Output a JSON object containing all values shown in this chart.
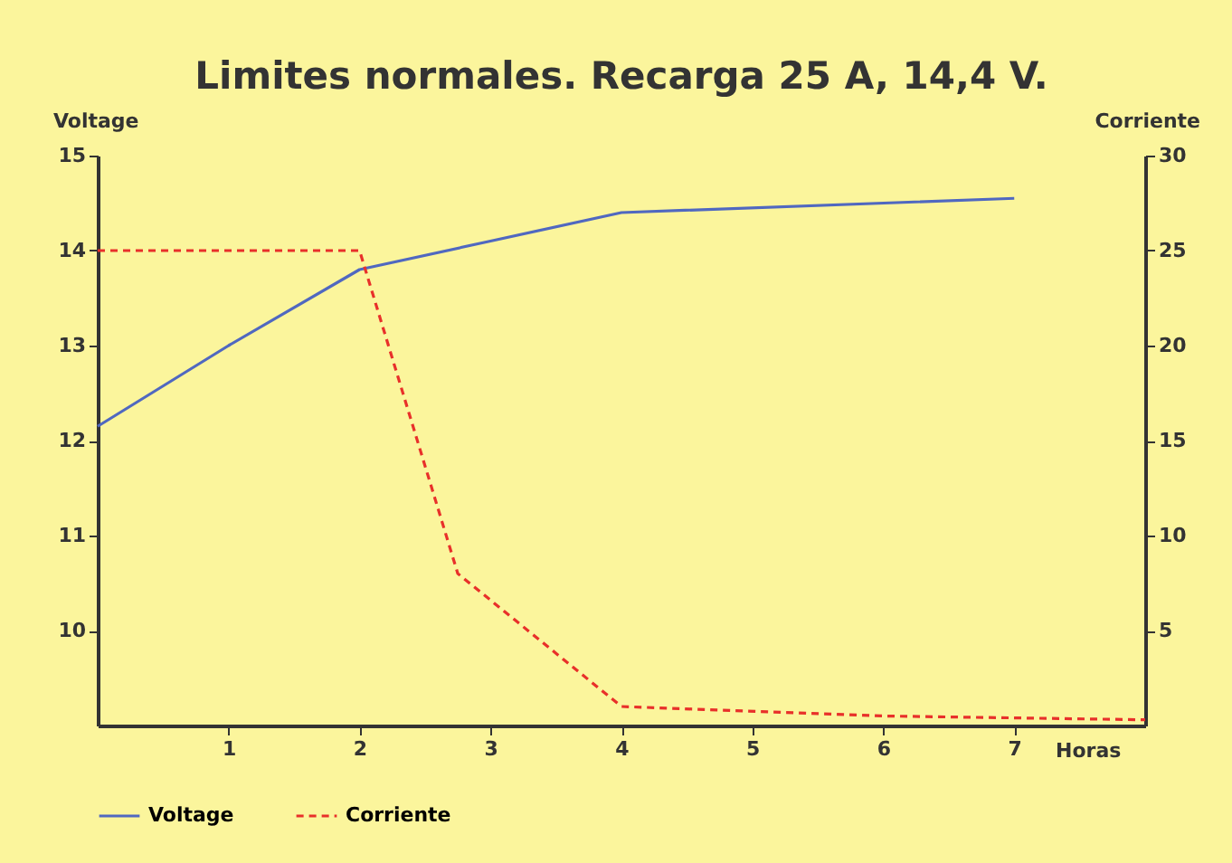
{
  "chart_data": {
    "type": "line",
    "title": "Limites normales. Recarga 25 A, 14,4 V.",
    "xlabel": "Horas",
    "ylabel": "Voltage",
    "y2label": "Corriente",
    "xlim": [
      0,
      8
    ],
    "xticks": [
      1,
      2,
      3,
      4,
      5,
      6,
      7
    ],
    "ylim": [
      9,
      15
    ],
    "yticks": [
      10,
      11,
      12,
      13,
      14,
      15
    ],
    "y2lim": [
      0,
      30
    ],
    "y2ticks": [
      5,
      10,
      15,
      20,
      25,
      30
    ],
    "legend": "bottom left",
    "series": [
      {
        "name": "Voltage",
        "color": "#5068c0",
        "line_style": "solid",
        "x": [
          0,
          1,
          2,
          3,
          4,
          7
        ],
        "values": [
          12.15,
          13.0,
          13.8,
          14.1,
          14.4,
          14.55
        ]
      },
      {
        "name": "Corriente",
        "color": "#e8302a",
        "line_style": "dashed",
        "axis": "y2",
        "x": [
          0,
          2,
          2.75,
          4,
          6,
          8
        ],
        "values": [
          25,
          25,
          8,
          1,
          0.5,
          0.3
        ]
      }
    ]
  }
}
